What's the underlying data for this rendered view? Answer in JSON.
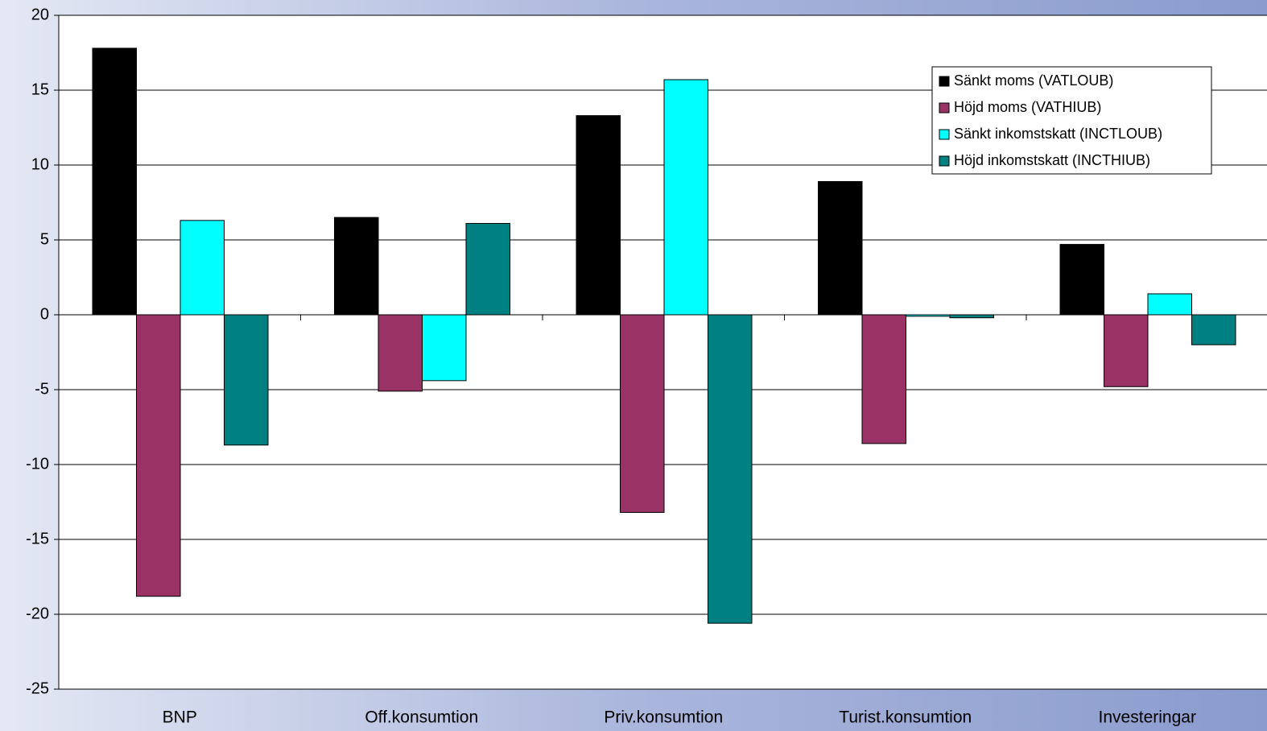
{
  "chart_data": {
    "type": "bar",
    "categories": [
      "BNP",
      "Off.konsumtion",
      "Priv.konsumtion",
      "Turist.konsumtion",
      "Investeringar"
    ],
    "series": [
      {
        "name": "Sänkt moms (VATLOUB)",
        "color": "#000000",
        "values": [
          17.8,
          6.5,
          13.3,
          8.9,
          4.7
        ]
      },
      {
        "name": "Höjd moms (VATHIUB)",
        "color": "#993366",
        "values": [
          -18.8,
          -5.1,
          -13.2,
          -8.6,
          -4.8
        ]
      },
      {
        "name": "Sänkt inkomstskatt (INCTLOUB)",
        "color": "#00ffff",
        "values": [
          6.3,
          -4.4,
          15.7,
          -0.1,
          1.4
        ]
      },
      {
        "name": "Höjd inkomstskatt (INCTHIUB)",
        "color": "#008080",
        "values": [
          -8.7,
          6.1,
          -20.6,
          -0.2,
          -2.0
        ]
      }
    ],
    "ylim": [
      -25,
      20
    ],
    "yticks": [
      -25,
      -20,
      -15,
      -10,
      -5,
      0,
      5,
      10,
      15,
      20
    ],
    "grid": true,
    "legend": "top-right"
  }
}
